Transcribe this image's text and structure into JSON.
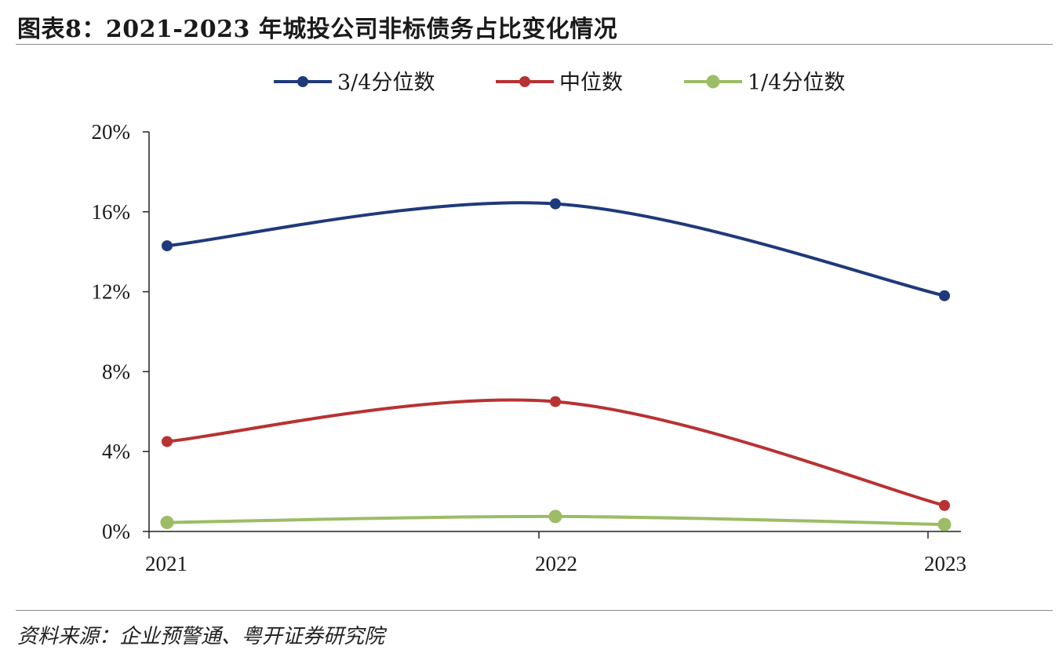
{
  "title": "图表8：2021-2023 年城投公司非标债务占比变化情况",
  "source": "资料来源：企业预警通、粤开证券研究院",
  "chart_data": {
    "type": "line",
    "x": [
      "2021",
      "2022",
      "2023"
    ],
    "ylim": [
      0,
      20
    ],
    "yticks": [
      0,
      4,
      8,
      12,
      16,
      20
    ],
    "ytick_labels": [
      "0%",
      "4%",
      "8%",
      "12%",
      "16%",
      "20%"
    ],
    "legend_position": "top-center",
    "grid": false,
    "smooth": true,
    "series": [
      {
        "name": "3/4分位数",
        "color": "#1f3a7a",
        "values": [
          14.3,
          16.4,
          11.8
        ]
      },
      {
        "name": "中位数",
        "color": "#b83232",
        "values": [
          4.5,
          6.5,
          1.3
        ]
      },
      {
        "name": "1/4分位数",
        "color": "#9cbc66",
        "values": [
          0.45,
          0.75,
          0.35
        ]
      }
    ]
  }
}
